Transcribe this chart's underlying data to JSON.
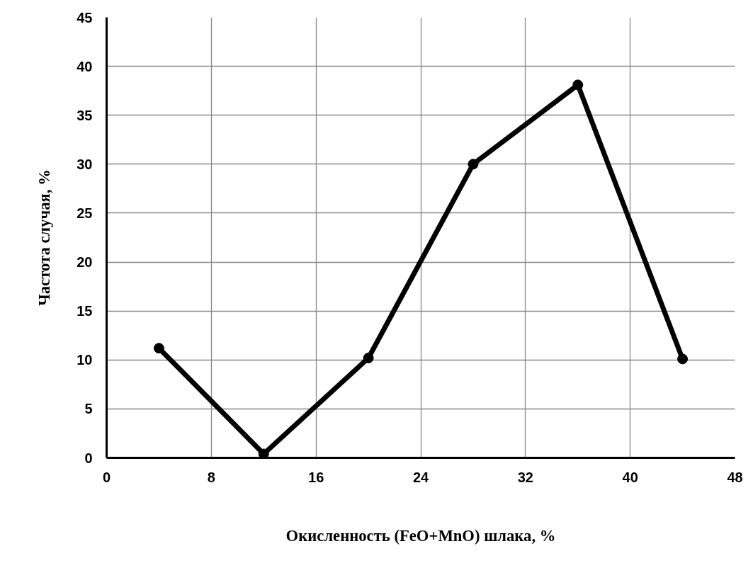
{
  "chart_data": {
    "type": "line",
    "xlabel": "Окисленность (FeO+MnO) шлака, %",
    "ylabel": "Частота случая, %",
    "x": [
      4,
      12,
      20,
      28,
      36,
      44
    ],
    "series": [
      {
        "color": "#000000",
        "values": [
          11.2,
          0.4,
          10.2,
          30.0,
          38.1,
          10.1
        ]
      }
    ],
    "xlim": [
      0,
      48
    ],
    "ylim": [
      0,
      45
    ],
    "xticks": [
      0,
      8,
      16,
      24,
      32,
      40,
      48
    ],
    "yticks": [
      0,
      5,
      10,
      15,
      20,
      25,
      30,
      35,
      40,
      45
    ],
    "grid": true,
    "marker": "circle",
    "line_style": "solid"
  }
}
